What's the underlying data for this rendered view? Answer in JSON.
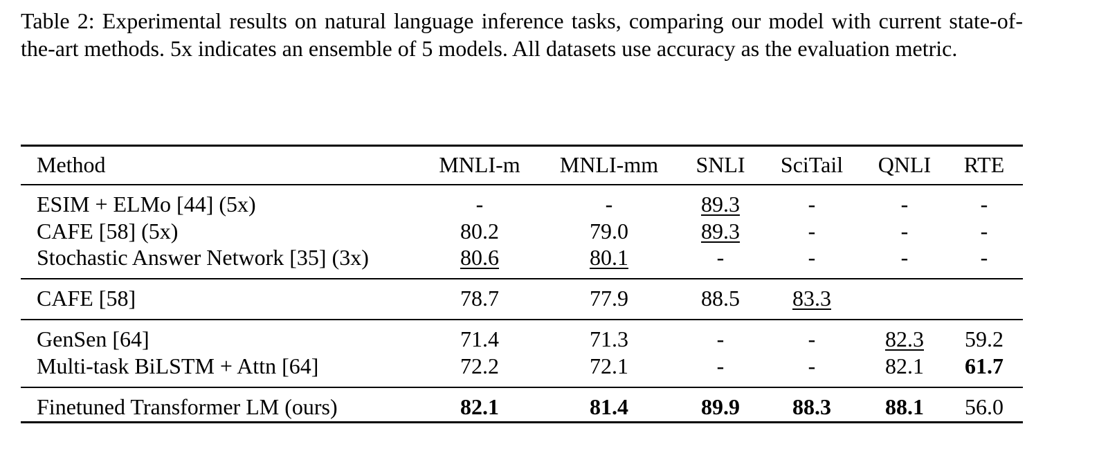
{
  "caption": "Table 2: Experimental results on natural language inference tasks, comparing our model with current state-of-the-art methods. 5x indicates an ensemble of 5 models. All datasets use accuracy as the evaluation metric.",
  "table": {
    "header": [
      "Method",
      "MNLI-m",
      "MNLI-mm",
      "SNLI",
      "SciTail",
      "QNLI",
      "RTE"
    ],
    "groups": [
      [
        [
          "ESIM + ELMo [44] (5x)",
          "-",
          "-",
          {
            "text": "89.3",
            "style": "underline"
          },
          "-",
          "-",
          "-"
        ],
        [
          "CAFE [58] (5x)",
          "80.2",
          "79.0",
          {
            "text": "89.3",
            "style": "underline"
          },
          "-",
          "-",
          "-"
        ],
        [
          "Stochastic Answer Network [35] (3x)",
          {
            "text": "80.6",
            "style": "underline"
          },
          {
            "text": "80.1",
            "style": "underline"
          },
          "-",
          "-",
          "-",
          "-"
        ]
      ],
      [
        [
          "CAFE [58]",
          "78.7",
          "77.9",
          "88.5",
          {
            "text": "83.3",
            "style": "underline"
          },
          null,
          null
        ]
      ],
      [
        [
          "GenSen [64]",
          "71.4",
          "71.3",
          "-",
          "-",
          {
            "text": "82.3",
            "style": "underline"
          },
          "59.2"
        ],
        [
          "Multi-task BiLSTM + Attn [64]",
          "72.2",
          "72.1",
          "-",
          "-",
          "82.1",
          {
            "text": "61.7",
            "style": "bold"
          }
        ]
      ],
      [
        [
          "Finetuned Transformer LM (ours)",
          {
            "text": "82.1",
            "style": "bold"
          },
          {
            "text": "81.4",
            "style": "bold"
          },
          {
            "text": "89.9",
            "style": "bold"
          },
          {
            "text": "88.3",
            "style": "bold"
          },
          {
            "text": "88.1",
            "style": "bold"
          },
          "56.0"
        ]
      ]
    ]
  }
}
